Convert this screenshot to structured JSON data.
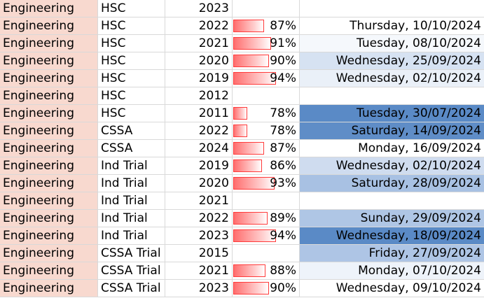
{
  "colors": {
    "subject_bg": "#f8d9cf",
    "date_bg_darkest": "#5a8ac6",
    "date_bg_dark": "#9fbae0",
    "date_bg_mid": "#cad9ef",
    "date_bg_light": "#e4ecf7",
    "date_bg_lightest": "#f5f8fc",
    "bar_border": "#ff3b3b",
    "bar_fill": "#ff6e6e"
  },
  "rows": [
    {
      "subject": "Engineering",
      "exam": "HSC",
      "year": "2023",
      "score": "",
      "score_value": null,
      "date": "",
      "date_bg": "#ffffff"
    },
    {
      "subject": "Engineering",
      "exam": "HSC",
      "year": "2022",
      "score": "87%",
      "score_value": 0.87,
      "date": "Thursday, 10/10/2024",
      "date_bg": "#ffffff"
    },
    {
      "subject": "Engineering",
      "exam": "HSC",
      "year": "2021",
      "score": "91%",
      "score_value": 0.91,
      "date": "Tuesday, 08/10/2024",
      "date_bg": "#f5f8fc"
    },
    {
      "subject": "Engineering",
      "exam": "HSC",
      "year": "2020",
      "score": "90%",
      "score_value": 0.9,
      "date": "Wednesday, 25/09/2024",
      "date_bg": "#d6e2f2"
    },
    {
      "subject": "Engineering",
      "exam": "HSC",
      "year": "2019",
      "score": "94%",
      "score_value": 0.94,
      "date": "Wednesday, 02/10/2024",
      "date_bg": "#eaf0f8"
    },
    {
      "subject": "Engineering",
      "exam": "HSC",
      "year": "2012",
      "score": "",
      "score_value": null,
      "date": "",
      "date_bg": "#ffffff"
    },
    {
      "subject": "Engineering",
      "exam": "HSC",
      "year": "2011",
      "score": "78%",
      "score_value": 0.78,
      "date": "Tuesday, 30/07/2024",
      "date_bg": "#5a8ac6"
    },
    {
      "subject": "Engineering",
      "exam": "CSSA",
      "year": "2022",
      "score": "78%",
      "score_value": 0.78,
      "date": "Saturday, 14/09/2024",
      "date_bg": "#5f8dc7"
    },
    {
      "subject": "Engineering",
      "exam": "CSSA",
      "year": "2024",
      "score": "87%",
      "score_value": 0.87,
      "date": "Monday, 16/09/2024",
      "date_bg": "#ffffff"
    },
    {
      "subject": "Engineering",
      "exam": "Ind Trial",
      "year": "2019",
      "score": "86%",
      "score_value": 0.86,
      "date": "Wednesday, 02/10/2024",
      "date_bg": "#cfdcef"
    },
    {
      "subject": "Engineering",
      "exam": "Ind Trial",
      "year": "2020",
      "score": "93%",
      "score_value": 0.93,
      "date": "Saturday, 28/09/2024",
      "date_bg": "#a8c1e3"
    },
    {
      "subject": "Engineering",
      "exam": "Ind Trial",
      "year": "2021",
      "score": "",
      "score_value": null,
      "date": "",
      "date_bg": "#ffffff"
    },
    {
      "subject": "Engineering",
      "exam": "Ind Trial",
      "year": "2022",
      "score": "89%",
      "score_value": 0.89,
      "date": "Sunday, 29/09/2024",
      "date_bg": "#afc6e5"
    },
    {
      "subject": "Engineering",
      "exam": "Ind Trial",
      "year": "2023",
      "score": "94%",
      "score_value": 0.94,
      "date": "Wednesday, 18/09/2024",
      "date_bg": "#5a8ac6"
    },
    {
      "subject": "Engineering",
      "exam": "CSSA Trial",
      "year": "2015",
      "score": "",
      "score_value": null,
      "date": "Friday, 27/09/2024",
      "date_bg": "#aec5e5"
    },
    {
      "subject": "Engineering",
      "exam": "CSSA Trial",
      "year": "2021",
      "score": "88%",
      "score_value": 0.88,
      "date": "Monday, 07/10/2024",
      "date_bg": "#eef3fa"
    },
    {
      "subject": "Engineering",
      "exam": "CSSA Trial",
      "year": "2023",
      "score": "90%",
      "score_value": 0.9,
      "date": "Wednesday, 09/10/2024",
      "date_bg": "#ffffff"
    }
  ]
}
